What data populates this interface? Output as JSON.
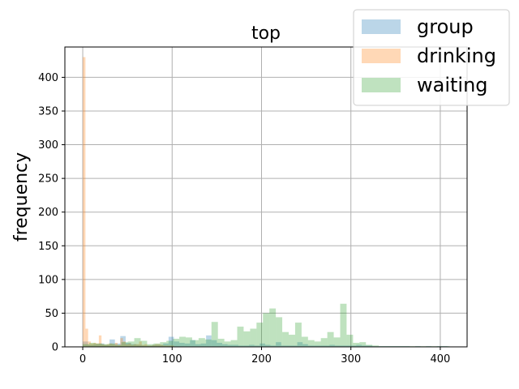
{
  "chart_data": {
    "type": "histogram",
    "title": "top",
    "xlabel": "",
    "ylabel": "frequency",
    "xlim": [
      -20,
      430
    ],
    "ylim": [
      0,
      445
    ],
    "xticks": [
      0,
      100,
      200,
      300,
      400
    ],
    "yticks": [
      0,
      50,
      100,
      150,
      200,
      250,
      300,
      350,
      400
    ],
    "grid": true,
    "legend_position": "top-right",
    "colors": {
      "group": "#1f77b4",
      "drinking": "#ff7f0e",
      "waiting": "#2ca02c"
    },
    "series": [
      {
        "name": "group",
        "bin_width": 6,
        "bins": [
          [
            0,
            8
          ],
          [
            6,
            3
          ],
          [
            12,
            4
          ],
          [
            18,
            5
          ],
          [
            24,
            3
          ],
          [
            30,
            11
          ],
          [
            36,
            5
          ],
          [
            42,
            16
          ],
          [
            48,
            6
          ],
          [
            54,
            4
          ],
          [
            60,
            3
          ],
          [
            66,
            2
          ],
          [
            72,
            2
          ],
          [
            78,
            3
          ],
          [
            84,
            3
          ],
          [
            90,
            5
          ],
          [
            96,
            15
          ],
          [
            102,
            8
          ],
          [
            108,
            6
          ],
          [
            114,
            5
          ],
          [
            120,
            10
          ],
          [
            126,
            4
          ],
          [
            132,
            5
          ],
          [
            138,
            17
          ],
          [
            144,
            10
          ],
          [
            150,
            6
          ],
          [
            156,
            4
          ],
          [
            162,
            3
          ],
          [
            168,
            3
          ],
          [
            174,
            2
          ],
          [
            180,
            2
          ],
          [
            186,
            3
          ],
          [
            192,
            2
          ],
          [
            198,
            5
          ],
          [
            204,
            3
          ],
          [
            210,
            2
          ],
          [
            216,
            7
          ],
          [
            222,
            2
          ],
          [
            228,
            2
          ],
          [
            234,
            2
          ],
          [
            240,
            7
          ],
          [
            246,
            4
          ],
          [
            252,
            2
          ],
          [
            258,
            2
          ],
          [
            264,
            2
          ],
          [
            270,
            2
          ],
          [
            276,
            3
          ],
          [
            282,
            2
          ],
          [
            288,
            2
          ],
          [
            294,
            2
          ],
          [
            300,
            2
          ],
          [
            306,
            3
          ],
          [
            312,
            2
          ],
          [
            318,
            2
          ],
          [
            324,
            1
          ],
          [
            330,
            1
          ],
          [
            336,
            1
          ],
          [
            342,
            1
          ],
          [
            348,
            1
          ],
          [
            354,
            1
          ],
          [
            360,
            1
          ],
          [
            372,
            1
          ],
          [
            384,
            1
          ],
          [
            396,
            1
          ],
          [
            402,
            1
          ]
        ]
      },
      {
        "name": "drinking",
        "bin_width": 3,
        "bins": [
          [
            0,
            430
          ],
          [
            3,
            27
          ],
          [
            6,
            8
          ],
          [
            9,
            5
          ],
          [
            12,
            6
          ],
          [
            15,
            5
          ],
          [
            18,
            17
          ],
          [
            21,
            4
          ],
          [
            24,
            3
          ],
          [
            27,
            4
          ],
          [
            30,
            5
          ],
          [
            33,
            4
          ],
          [
            36,
            6
          ],
          [
            39,
            3
          ],
          [
            42,
            13
          ],
          [
            45,
            8
          ],
          [
            48,
            4
          ],
          [
            51,
            5
          ],
          [
            54,
            3
          ],
          [
            57,
            4
          ],
          [
            60,
            4
          ],
          [
            63,
            8
          ],
          [
            66,
            3
          ],
          [
            69,
            4
          ],
          [
            72,
            2
          ],
          [
            75,
            2
          ],
          [
            78,
            3
          ],
          [
            81,
            4
          ],
          [
            84,
            4
          ],
          [
            87,
            3
          ],
          [
            90,
            2
          ],
          [
            93,
            2
          ],
          [
            96,
            2
          ],
          [
            99,
            2
          ]
        ]
      },
      {
        "name": "waiting",
        "bin_width": 7.2,
        "bins": [
          [
            0,
            4
          ],
          [
            7.2,
            6
          ],
          [
            14.4,
            5
          ],
          [
            21.6,
            4
          ],
          [
            28.8,
            5
          ],
          [
            36,
            3
          ],
          [
            43.2,
            7
          ],
          [
            50.4,
            8
          ],
          [
            57.6,
            13
          ],
          [
            64.8,
            9
          ],
          [
            72,
            4
          ],
          [
            79.2,
            5
          ],
          [
            86.4,
            7
          ],
          [
            93.6,
            9
          ],
          [
            100.8,
            12
          ],
          [
            108,
            15
          ],
          [
            115.2,
            14
          ],
          [
            122.4,
            10
          ],
          [
            129.6,
            13
          ],
          [
            136.8,
            11
          ],
          [
            144,
            37
          ],
          [
            151.2,
            12
          ],
          [
            158.4,
            8
          ],
          [
            165.6,
            10
          ],
          [
            172.8,
            30
          ],
          [
            180,
            23
          ],
          [
            187.2,
            27
          ],
          [
            194.4,
            36
          ],
          [
            201.6,
            50
          ],
          [
            208.8,
            57
          ],
          [
            216,
            44
          ],
          [
            223.2,
            22
          ],
          [
            230.4,
            18
          ],
          [
            237.6,
            36
          ],
          [
            244.8,
            15
          ],
          [
            252,
            10
          ],
          [
            259.2,
            8
          ],
          [
            266.4,
            13
          ],
          [
            273.6,
            22
          ],
          [
            280.8,
            14
          ],
          [
            288,
            64
          ],
          [
            295.2,
            18
          ],
          [
            302.4,
            6
          ],
          [
            309.6,
            7
          ],
          [
            316.8,
            3
          ],
          [
            324,
            2
          ],
          [
            331.2,
            1
          ],
          [
            338.4,
            1
          ],
          [
            345.6,
            1
          ],
          [
            352.8,
            1
          ],
          [
            360,
            1
          ],
          [
            367.2,
            1
          ],
          [
            374.4,
            1
          ],
          [
            381.6,
            1
          ],
          [
            388.8,
            1
          ],
          [
            396,
            1
          ],
          [
            403.2,
            1
          ]
        ]
      }
    ]
  }
}
